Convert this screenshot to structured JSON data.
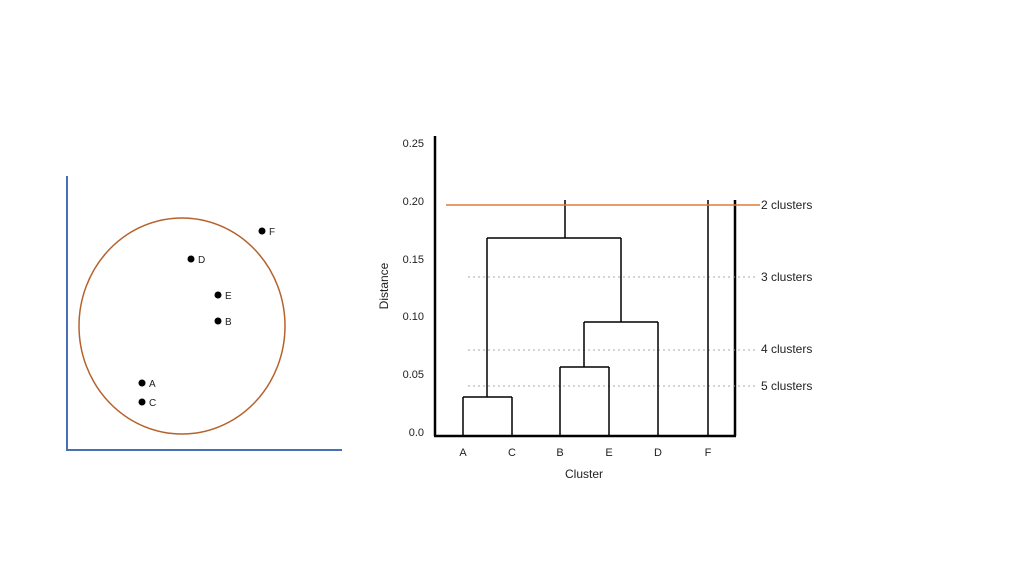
{
  "scatter": {
    "points": [
      {
        "label": "F"
      },
      {
        "label": "D"
      },
      {
        "label": "E"
      },
      {
        "label": "B"
      },
      {
        "label": "A"
      },
      {
        "label": "C"
      }
    ]
  },
  "dendrogram": {
    "xlabel": "Cluster",
    "ylabel": "Distance",
    "yticks": [
      "0.25",
      "0.20",
      "0.15",
      "0.10",
      "0.05",
      "0.0"
    ],
    "leaves": [
      "A",
      "C",
      "B",
      "E",
      "D",
      "F"
    ],
    "cut_labels": [
      "2 clusters",
      "3 clusters",
      "4 clusters",
      "5 clusters"
    ],
    "colors": {
      "cut_line": "#e07b39",
      "circle": "#b5622c",
      "axis": "#4a6fb5"
    }
  },
  "chart_data": {
    "type": "dendrogram",
    "leaves": [
      "A",
      "C",
      "B",
      "E",
      "D",
      "F"
    ],
    "merges": [
      {
        "join": [
          "A",
          "C"
        ],
        "distance": 0.032
      },
      {
        "join": [
          "B",
          "E"
        ],
        "distance": 0.058
      },
      {
        "join": [
          "BE",
          "D"
        ],
        "distance": 0.096
      },
      {
        "join": [
          "AC",
          "BED"
        ],
        "distance": 0.168
      },
      {
        "join": [
          "ACBED",
          "F"
        ],
        "distance": 0.2
      }
    ],
    "cuts": [
      {
        "label": "2 clusters",
        "distance": 0.195
      },
      {
        "label": "3 clusters",
        "distance": 0.135
      },
      {
        "label": "4 clusters",
        "distance": 0.072
      },
      {
        "label": "5 clusters",
        "distance": 0.04
      }
    ],
    "xlabel": "Cluster",
    "ylabel": "Distance",
    "ylim": [
      0,
      0.25
    ]
  }
}
